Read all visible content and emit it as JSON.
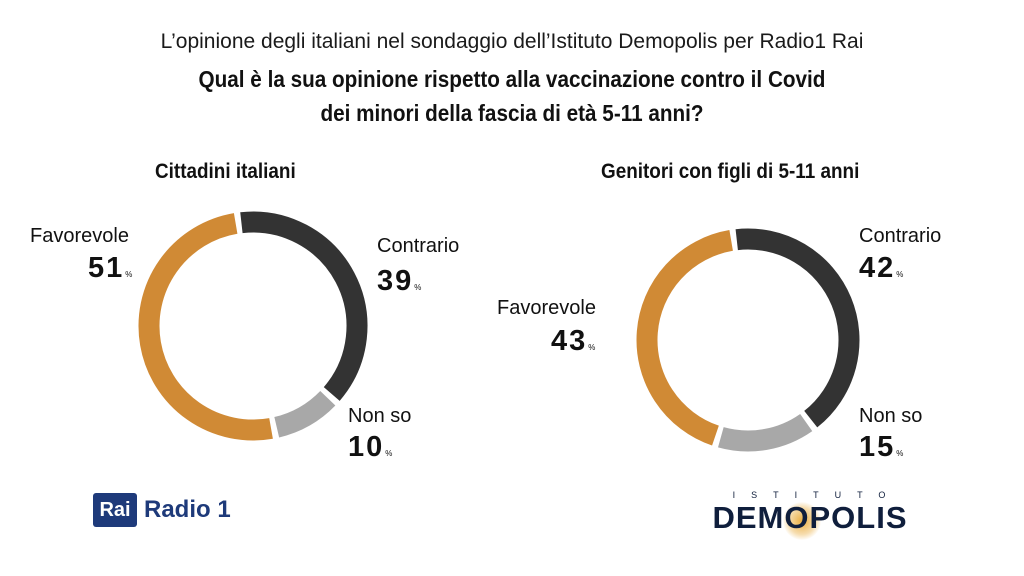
{
  "header": {
    "subtitle": "L’opinione degli italiani nel sondaggio dell’Istituto Demopolis per Radio1 Rai",
    "question_line1": "Qual è la sua opinione rispetto alla vaccinazione contro il Covid",
    "question_line2": "dei minori della fascia di età 5-11 anni?"
  },
  "charts": [
    {
      "title": "Cittadini italiani",
      "labels": {
        "favorevole": {
          "name": "Favorevole",
          "value": "51",
          "unit": "%"
        },
        "contrario": {
          "name": "Contrario",
          "value": "39",
          "unit": "%"
        },
        "nonso": {
          "name": "Non so",
          "value": "10",
          "unit": "%"
        }
      }
    },
    {
      "title": "Genitori con figli di 5-11 anni",
      "labels": {
        "favorevole": {
          "name": "Favorevole",
          "value": "43",
          "unit": "%"
        },
        "contrario": {
          "name": "Contrario",
          "value": "42",
          "unit": "%"
        },
        "nonso": {
          "name": "Non so",
          "value": "15",
          "unit": "%"
        }
      }
    }
  ],
  "chart_data": [
    {
      "type": "pie",
      "title": "Cittadini italiani",
      "categories": [
        "Contrario",
        "Non so",
        "Favorevole"
      ],
      "values": [
        39,
        10,
        51
      ],
      "colors": [
        "#333333",
        "#a8a8a8",
        "#d08a35"
      ]
    },
    {
      "type": "pie",
      "title": "Genitori con figli di 5-11 anni",
      "categories": [
        "Contrario",
        "Non so",
        "Favorevole"
      ],
      "values": [
        42,
        15,
        43
      ],
      "colors": [
        "#333333",
        "#a8a8a8",
        "#d08a35"
      ]
    }
  ],
  "logos": {
    "rai": "Rai",
    "radio": "Radio 1",
    "demopolis_small": "ISTITUTO",
    "demopolis_big": "DEMOPOLIS"
  }
}
